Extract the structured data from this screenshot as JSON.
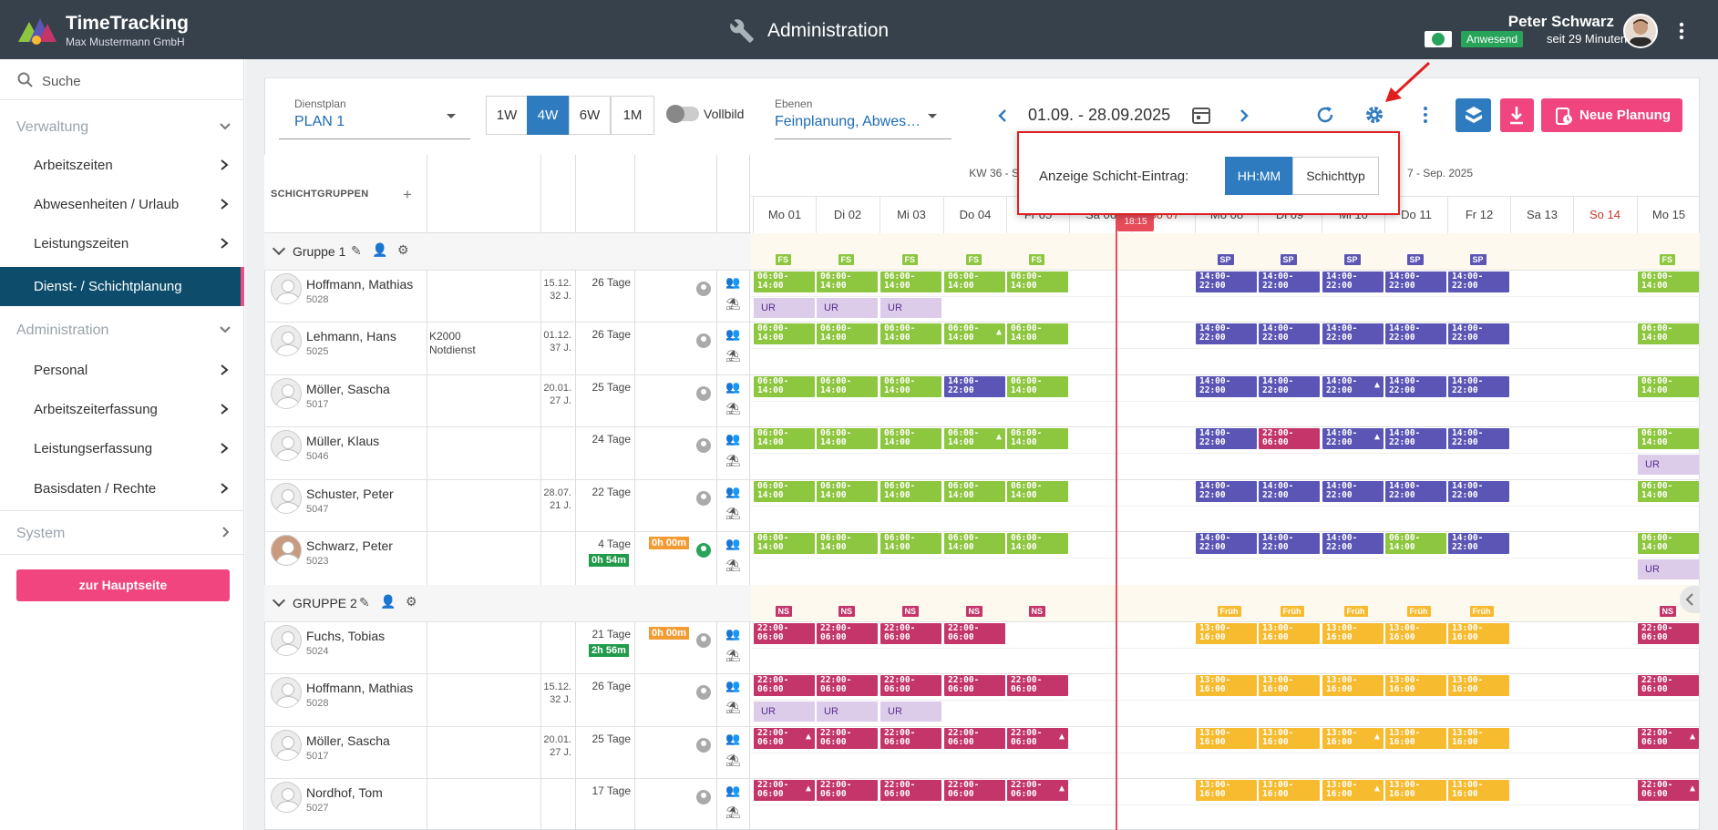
{
  "header": {
    "app_title": "TimeTracking",
    "company": "Max Mustermann GmbH",
    "center_title": "Administration",
    "user_name": "Peter Schwarz",
    "status": "Anwesend",
    "since": "seit 29 Minuten"
  },
  "sidebar": {
    "search": "Suche",
    "sections": [
      {
        "label": "Verwaltung",
        "items": [
          "Arbeitszeiten",
          "Abwesenheiten / Urlaub",
          "Leistungszeiten",
          "Dienst- / Schichtplanung"
        ]
      },
      {
        "label": "Administration",
        "items": [
          "Personal",
          "Arbeitszeiterfassung",
          "Leistungserfassung",
          "Basisdaten / Rechte"
        ]
      },
      {
        "label": "System",
        "items": []
      }
    ],
    "main_button": "zur Hauptseite"
  },
  "toolbar": {
    "dienstplan_label": "Dienstplan",
    "dienstplan_value": "PLAN 1",
    "ranges": [
      "1W",
      "4W",
      "6W",
      "1M"
    ],
    "active_range": "4W",
    "vollbild": "Vollbild",
    "ebenen_label": "Ebenen",
    "ebenen_value": "Feinplanung, Abwes…",
    "date_range": "01.09. - 28.09.2025",
    "new_plan": "Neue Planung"
  },
  "popup": {
    "label": "Anzeige Schicht-Eintrag:",
    "options": [
      "HH:MM",
      "Schichttyp"
    ],
    "active": "HH:MM"
  },
  "grid": {
    "schichtgruppen": "SCHICHTGRUPPEN",
    "kw_left": "KW 36 - Sep. 2025",
    "kw_right": "7 - Sep. 2025",
    "now_time": "18:15",
    "days": [
      "Mo 01",
      "Di 02",
      "Mi 03",
      "Do 04",
      "Fr 05",
      "Sa 06",
      "So 07",
      "Mo 08",
      "Di 09",
      "Mi 10",
      "Do 11",
      "Fr 12",
      "Sa 13",
      "So 14",
      "Mo 15"
    ],
    "groups": [
      {
        "name": "Gruppe 1",
        "tags": [
          "FS",
          "FS",
          "FS",
          "FS",
          "FS",
          "",
          "",
          "SP",
          "SP",
          "SP",
          "SP",
          "SP",
          "",
          "",
          "FS"
        ],
        "employees": [
          {
            "name": "Hoffmann, Mathias",
            "id": "5028",
            "note": "",
            "date": "15.12.",
            "years": "32 J.",
            "days": "26 Tage",
            "overtime": "",
            "balance": ""
          },
          {
            "name": "Lehmann, Hans",
            "id": "5025",
            "note": "K2000\nNotdienst",
            "date": "01.12.",
            "years": "37 J.",
            "days": "26 Tage",
            "overtime": "",
            "balance": ""
          },
          {
            "name": "Möller, Sascha",
            "id": "5017",
            "note": "",
            "date": "20.01.",
            "years": "27 J.",
            "days": "25 Tage",
            "overtime": "",
            "balance": ""
          },
          {
            "name": "Müller, Klaus",
            "id": "5046",
            "note": "",
            "date": "",
            "years": "",
            "days": "24 Tage",
            "overtime": "",
            "balance": ""
          },
          {
            "name": "Schuster, Peter",
            "id": "5047",
            "note": "",
            "date": "28.07.",
            "years": "21 J.",
            "days": "22 Tage",
            "overtime": "",
            "balance": ""
          },
          {
            "name": "Schwarz, Peter",
            "id": "5023",
            "note": "",
            "date": "",
            "years": "",
            "days": "4 Tage",
            "overtime": "0h 54m",
            "balance": "0h 00m"
          }
        ]
      },
      {
        "name": "GRUPPE 2",
        "tags": [
          "NS",
          "NS",
          "NS",
          "NS",
          "NS",
          "",
          "",
          "Früh",
          "Früh",
          "Früh",
          "Früh",
          "Früh",
          "",
          "",
          "NS"
        ],
        "employees": [
          {
            "name": "Fuchs, Tobias",
            "id": "5024",
            "note": "",
            "date": "",
            "years": "",
            "days": "21 Tage",
            "overtime": "2h 56m",
            "balance": "0h 00m"
          },
          {
            "name": "Hoffmann, Mathias",
            "id": "5028",
            "note": "",
            "date": "15.12.",
            "years": "32 J.",
            "days": "26 Tage",
            "overtime": "",
            "balance": ""
          },
          {
            "name": "Möller, Sascha",
            "id": "5017",
            "note": "",
            "date": "20.01.",
            "years": "27 J.",
            "days": "25 Tage",
            "overtime": "",
            "balance": ""
          },
          {
            "name": "Nordhof, Tom",
            "id": "5027",
            "note": "",
            "date": "",
            "years": "",
            "days": "17 Tage",
            "overtime": "",
            "balance": ""
          }
        ]
      }
    ]
  },
  "shift_rows": [
    [
      "g:06:00-|14:00",
      "g:06:00-|14:00",
      "g:06:00-|14:00",
      "g:06:00-|14:00",
      "g:06:00-|14:00",
      "",
      "",
      "b:14:00-|22:00",
      "b:14:00-|22:00",
      "b:14:00-|22:00",
      "b:14:00-|22:00",
      "b:14:00-|22:00",
      "",
      "",
      "g:06:00-|14:00"
    ],
    [
      "g:06:00-|14:00",
      "g:06:00-|14:00",
      "g:06:00-|14:00",
      "gw:06:00-|14:00",
      "g:06:00-|14:00",
      "",
      "",
      "b:14:00-|22:00",
      "b:14:00-|22:00",
      "b:14:00-|22:00",
      "b:14:00-|22:00",
      "b:14:00-|22:00",
      "",
      "",
      "g:06:00-|14:00"
    ],
    [
      "g:06:00-|14:00",
      "g:06:00-|14:00",
      "g:06:00-|14:00",
      "b:14:00-|22:00",
      "g:06:00-|14:00",
      "",
      "",
      "b:14:00-|22:00",
      "b:14:00-|22:00",
      "bw:14:00-|22:00",
      "b:14:00-|22:00",
      "b:14:00-|22:00",
      "",
      "",
      "g:06:00-|14:00"
    ],
    [
      "g:06:00-|14:00",
      "g:06:00-|14:00",
      "g:06:00-|14:00",
      "gw:06:00-|14:00",
      "g:06:00-|14:00",
      "",
      "",
      "b:14:00-|22:00",
      "r:22:00-|06:00",
      "bw:14:00-|22:00",
      "b:14:00-|22:00",
      "b:14:00-|22:00",
      "",
      "",
      "g:06:00-|14:00"
    ],
    [
      "g:06:00-|14:00",
      "g:06:00-|14:00",
      "g:06:00-|14:00",
      "g:06:00-|14:00",
      "g:06:00-|14:00",
      "",
      "",
      "b:14:00-|22:00",
      "b:14:00-|22:00",
      "b:14:00-|22:00",
      "b:14:00-|22:00",
      "b:14:00-|22:00",
      "",
      "",
      "g:06:00-|14:00"
    ],
    [
      "g:06:00-|14:00",
      "g:06:00-|14:00",
      "g:06:00-|14:00",
      "g:06:00-|14:00",
      "g:06:00-|14:00",
      "",
      "",
      "b:14:00-|22:00",
      "b:14:00-|22:00",
      "b:14:00-|22:00",
      "g:06:00-|14:00",
      "b:14:00-|22:00",
      "",
      "",
      "g:06:00-|14:00"
    ],
    [
      "r:22:00-|06:00",
      "r:22:00-|06:00",
      "r:22:00-|06:00",
      "r:22:00-|06:00",
      "",
      "",
      "",
      "y:13:00-|16:00",
      "y:13:00-|16:00",
      "y:13:00-|16:00",
      "y:13:00-|16:00",
      "y:13:00-|16:00",
      "",
      "",
      "r:22:00-|06:00"
    ],
    [
      "r:22:00-|06:00",
      "r:22:00-|06:00",
      "r:22:00-|06:00",
      "r:22:00-|06:00",
      "r:22:00-|06:00",
      "",
      "",
      "y:13:00-|16:00",
      "y:13:00-|16:00",
      "y:13:00-|16:00",
      "y:13:00-|16:00",
      "y:13:00-|16:00",
      "",
      "",
      "r:22:00-|06:00"
    ],
    [
      "rw:22:00-|06:00",
      "r:22:00-|06:00",
      "r:22:00-|06:00",
      "r:22:00-|06:00",
      "rw:22:00-|06:00",
      "",
      "",
      "y:13:00-|16:00",
      "y:13:00-|16:00",
      "yw:13:00-|16:00",
      "y:13:00-|16:00",
      "y:13:00-|16:00",
      "",
      "",
      "rw:22:00-|06:00"
    ],
    [
      "rw:22:00-|06:00",
      "r:22:00-|06:00",
      "r:22:00-|06:00",
      "r:22:00-|06:00",
      "rw:22:00-|06:00",
      "",
      "",
      "y:13:00-|16:00",
      "y:13:00-|16:00",
      "yw:13:00-|16:00",
      "y:13:00-|16:00",
      "y:13:00-|16:00",
      "",
      "",
      "rw:22:00-|06:00"
    ]
  ],
  "absence_rows": [
    [
      "UR",
      "UR",
      "UR",
      "",
      "",
      "",
      "",
      "",
      "",
      "",
      "",
      "",
      "",
      "",
      ""
    ],
    [
      "",
      "",
      "",
      "",
      "",
      "",
      "",
      "",
      "",
      "",
      "",
      "",
      "",
      "",
      ""
    ],
    [
      "",
      "",
      "",
      "",
      "",
      "",
      "",
      "",
      "",
      "",
      "",
      "",
      "",
      "",
      ""
    ],
    [
      "",
      "",
      "",
      "",
      "",
      "",
      "",
      "",
      "",
      "",
      "",
      "",
      "",
      "",
      "UR"
    ],
    [
      "",
      "",
      "",
      "",
      "",
      "",
      "",
      "",
      "",
      "",
      "",
      "",
      "",
      "",
      ""
    ],
    [
      "",
      "",
      "",
      "",
      "",
      "",
      "",
      "",
      "",
      "",
      "",
      "",
      "",
      "",
      "UR"
    ],
    [
      "",
      "",
      "",
      "",
      "",
      "",
      "",
      "",
      "",
      "",
      "",
      "",
      "",
      "",
      ""
    ],
    [
      "UR",
      "UR",
      "UR",
      "",
      "",
      "",
      "",
      "",
      "",
      "",
      "",
      "",
      "",
      "",
      ""
    ],
    [
      "",
      "",
      "",
      "",
      "",
      "",
      "",
      "",
      "",
      "",
      "",
      "",
      "",
      "",
      ""
    ],
    [
      "",
      "",
      "",
      "",
      "",
      "",
      "",
      "",
      "",
      "",
      "",
      "",
      "",
      "",
      ""
    ]
  ]
}
